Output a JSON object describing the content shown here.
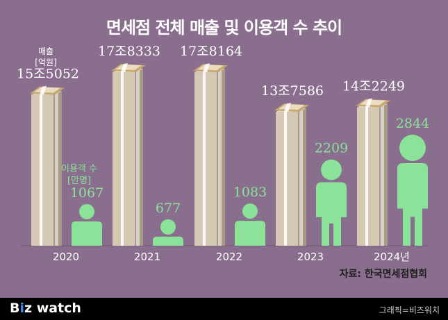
{
  "chart_data": {
    "type": "bar",
    "title": "면세점 전체 매출 및 이용객 수 추이",
    "categories": [
      "2020",
      "2021",
      "2022",
      "2023",
      "2024년"
    ],
    "series": [
      {
        "name": "매출 [억원]",
        "values": [
          155052,
          178333,
          178164,
          137586,
          142249
        ],
        "labels": [
          "15조5052",
          "17조8333",
          "17조8164",
          "13조7586",
          "14조2249"
        ]
      },
      {
        "name": "이용객 수 [만명]",
        "values": [
          1067,
          677,
          1083,
          2209,
          2844
        ],
        "labels": [
          "1067",
          "677",
          "1083",
          "2209",
          "2844"
        ]
      }
    ],
    "legend": {
      "revenue_line1": "매출",
      "revenue_line2": "[억원]",
      "visitors_line1": "이용객 수",
      "visitors_line2": "[만명]"
    },
    "source": "자료: 한국면세점협회"
  },
  "footer": {
    "brand_b": "B",
    "brand_i": "i",
    "brand_z": "z",
    "brand_rest": "watch",
    "credit": "그래픽=비즈워치"
  },
  "colors": {
    "background": "#8a6e8e",
    "label_revenue": "#ffffff",
    "label_visitors": "#8be39a",
    "person": "#8be39a",
    "money_front": "#d5c9b4",
    "money_side": "#a89a84"
  }
}
